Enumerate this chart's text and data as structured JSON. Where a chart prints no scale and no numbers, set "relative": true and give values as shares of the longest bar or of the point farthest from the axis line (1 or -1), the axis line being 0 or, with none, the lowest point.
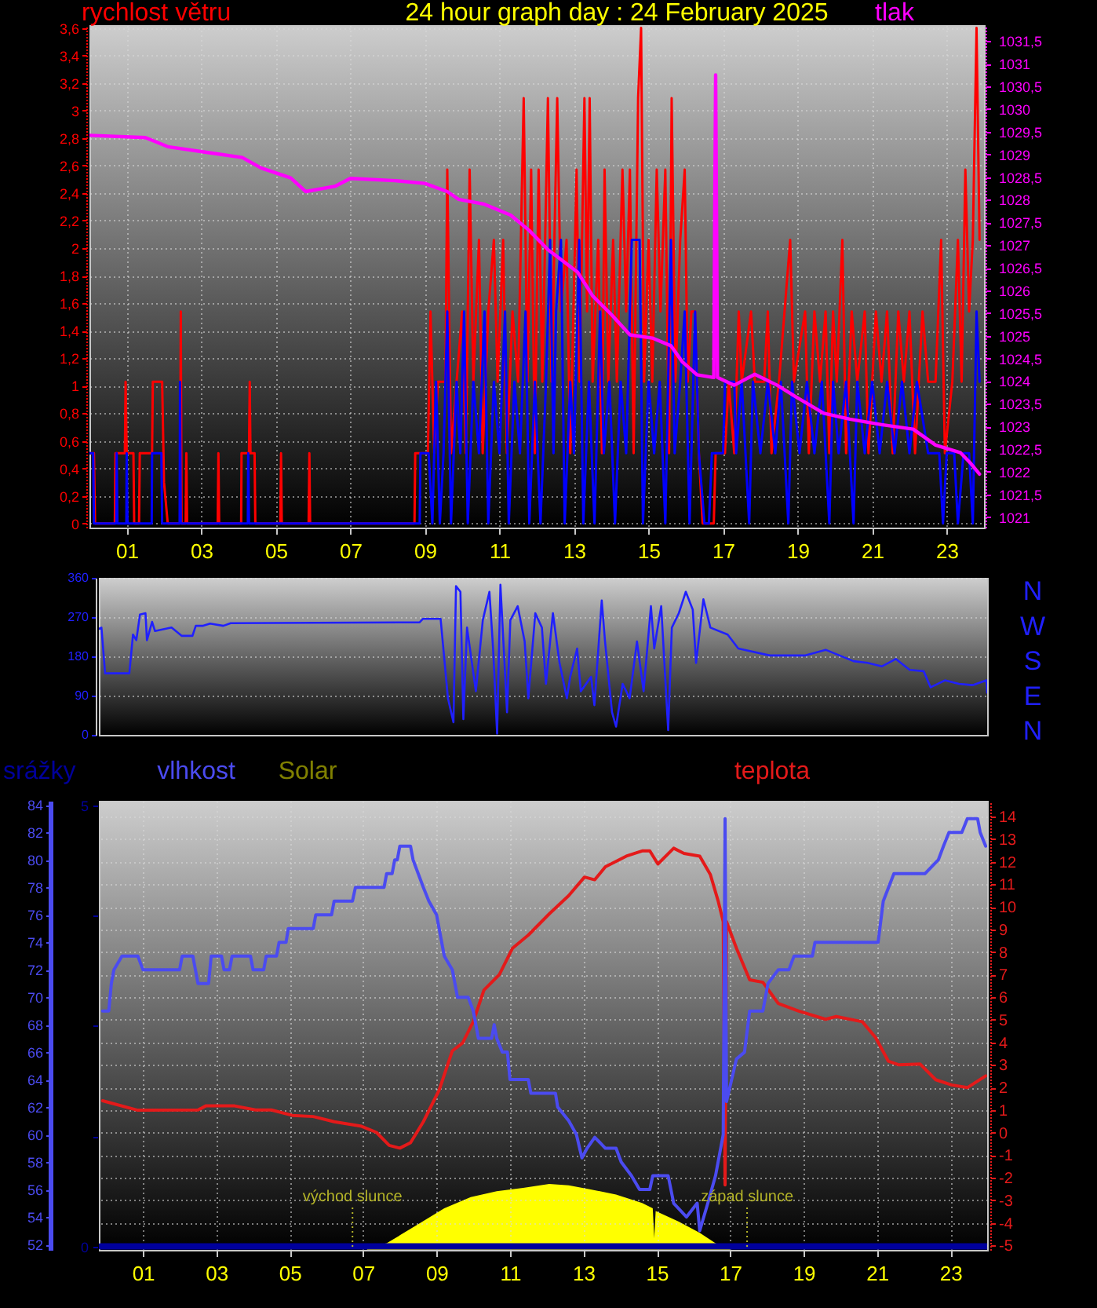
{
  "chart_data": [
    {
      "type": "line",
      "title": "24 hour graph day : 24 February 2025",
      "ylabel": "rychlost větru",
      "y2label": "tlak",
      "xlim": [
        0,
        24
      ],
      "xticks": [
        {
          "value": 1,
          "label": "01"
        },
        {
          "value": 3,
          "label": "03"
        },
        {
          "value": 5,
          "label": "05"
        },
        {
          "value": 7,
          "label": "07"
        },
        {
          "value": 9,
          "label": "09"
        },
        11,
        13,
        15,
        17,
        19,
        21,
        23
      ],
      "ylim": [
        -0.03,
        3.62
      ],
      "yticks": [
        0,
        {
          "value": 0.2,
          "label": "0,2"
        },
        {
          "value": 0.4,
          "label": "0,4"
        },
        {
          "value": 0.6,
          "label": "0,6"
        },
        {
          "value": 0.8,
          "label": "0,8"
        },
        1,
        {
          "value": 1.2,
          "label": "1,2"
        },
        {
          "value": 1.4,
          "label": "1,4"
        },
        {
          "value": 1.6,
          "label": "1,6"
        },
        {
          "value": 1.8,
          "label": "1,8"
        },
        2,
        {
          "value": 2.2,
          "label": "2,2"
        },
        {
          "value": 2.4,
          "label": "2,4"
        },
        {
          "value": 2.6,
          "label": "2,6"
        },
        {
          "value": 2.8,
          "label": "2,8"
        },
        3,
        {
          "value": 3.2,
          "label": "3,2"
        },
        {
          "value": 3.4,
          "label": "3,4"
        },
        {
          "value": 3.6,
          "label": "3,6"
        }
      ],
      "y2lim": [
        1020.77,
        1031.85
      ],
      "y2ticks": [
        1021,
        {
          "value": 1021.5,
          "label": "1021,5"
        },
        1022,
        {
          "value": 1022.5,
          "label": "1022,5"
        },
        1023,
        {
          "value": 1023.5,
          "label": "1023,5"
        },
        1024,
        {
          "value": 1024.5,
          "label": "1024,5"
        },
        1025,
        {
          "value": 1025.5,
          "label": "1025,5"
        },
        1026,
        {
          "value": 1026.5,
          "label": "1026,5"
        },
        1027,
        {
          "value": 1027.5,
          "label": "1027,5"
        },
        1028,
        {
          "value": 1028.5,
          "label": "1028,5"
        },
        1029,
        {
          "value": 1029.5,
          "label": "1029,5"
        },
        1030,
        {
          "value": 1030.5,
          "label": "1030,5"
        },
        1031,
        {
          "value": 1031.5,
          "label": "1031,5"
        }
      ],
      "grid": true,
      "series": [
        {
          "color": "#ff0000",
          "x": [
            0,
            0.12,
            0.15,
            0.68,
            0.7,
            0.95,
            0.97,
            1.0,
            1.18,
            1.2,
            1.33,
            1.35,
            1.68,
            1.7,
            1.95,
            2.0,
            2.1,
            2.43,
            2.45,
            2.47,
            2.58,
            2.6,
            2.62,
            3.44,
            3.46,
            3.48,
            4.07,
            4.08,
            4.28,
            4.3,
            4.32,
            4.43,
            4.45,
            5.12,
            5.14,
            5.16,
            5.88,
            5.9,
            5.92,
            8.72,
            8.74,
            9.08,
            9.15,
            9.25,
            9.35,
            9.55,
            9.6,
            9.7,
            9.85,
            10.0,
            10.1,
            10.2,
            10.3,
            10.45,
            10.55,
            10.7,
            10.85,
            10.95,
            11.1,
            11.2,
            11.35,
            11.5,
            11.65,
            11.75,
            11.85,
            11.95,
            12.05,
            12.15,
            12.3,
            12.4,
            12.55,
            12.65,
            12.8,
            12.9,
            13.07,
            13.15,
            13.28,
            13.35,
            13.42,
            13.5,
            13.65,
            13.75,
            13.82,
            13.92,
            14.05,
            14.15,
            14.3,
            14.4,
            14.5,
            14.6,
            14.72,
            14.8,
            14.88,
            15.0,
            15.1,
            15.22,
            15.32,
            15.45,
            15.55,
            15.62,
            15.72,
            15.85,
            15.97,
            16.05,
            16.15,
            16.25,
            16.35,
            16.45,
            16.75,
            16.8,
            17.05,
            17.15,
            17.3,
            17.42,
            17.5,
            17.75,
            17.85,
            18.1,
            18.2,
            18.3,
            18.5,
            18.8,
            18.9,
            19.2,
            19.3,
            19.45,
            19.6,
            19.75,
            19.85,
            19.95,
            20.05,
            20.2,
            20.3,
            20.45,
            20.6,
            20.8,
            20.9,
            21.1,
            21.25,
            21.4,
            21.55,
            21.7,
            21.85,
            22.0,
            22.15,
            22.35,
            22.5,
            22.7,
            22.85,
            22.95,
            23.15,
            23.3,
            23.4,
            23.5,
            23.6,
            23.7,
            23.8,
            23.88
          ],
          "values": [
            0.51,
            0.51,
            0,
            0,
            0.51,
            0.51,
            1.03,
            0.51,
            0.51,
            0,
            0,
            0.51,
            0.51,
            1.03,
            1.03,
            0.3,
            0,
            0,
            1.54,
            0,
            0,
            0.51,
            0,
            0,
            0.51,
            0,
            0,
            0.51,
            0.51,
            1.03,
            0.51,
            0.51,
            0,
            0,
            0.51,
            0,
            0,
            0.51,
            0,
            0,
            0.51,
            0.51,
            1.54,
            0.51,
            1.03,
            1.03,
            2.57,
            0.51,
            1.03,
            1.54,
            0.51,
            2.57,
            1.03,
            2.06,
            0.51,
            1.54,
            2.06,
            1.03,
            2.06,
            0.51,
            1.54,
            1.03,
            3.09,
            1.03,
            2.57,
            0.51,
            2.57,
            1.03,
            3.09,
            1.03,
            3.09,
            1.54,
            2.06,
            0.51,
            2.57,
            1.03,
            3.09,
            1.54,
            3.09,
            1.03,
            2.06,
            0.51,
            2.57,
            1.03,
            2.06,
            1.03,
            2.57,
            1.54,
            2.57,
            0.51,
            3.09,
            3.6,
            1.03,
            2.06,
            1.03,
            2.57,
            1.54,
            2.57,
            0.51,
            3.09,
            1.03,
            2.06,
            2.57,
            1.03,
            1.54,
            1.54,
            0.51,
            0,
            0,
            0.51,
            0.51,
            1.03,
            0.51,
            1.54,
            1.03,
            1.54,
            1.03,
            1.03,
            1.54,
            0.51,
            1.03,
            2.06,
            1.03,
            1.54,
            0.51,
            1.54,
            1.03,
            1.54,
            0.51,
            1.54,
            1.03,
            2.06,
            0.51,
            1.54,
            1.03,
            1.54,
            0.51,
            1.54,
            1.03,
            1.54,
            0.51,
            1.54,
            1.03,
            1.54,
            0.51,
            1.54,
            1.03,
            1.03,
            2.06,
            0.51,
            1.03,
            2.06,
            1.03,
            2.57,
            1.54,
            2.06,
            3.6,
            2.06
          ]
        },
        {
          "color": "#0000ff",
          "x": [
            0,
            0.1,
            0.12,
            0.72,
            0.73,
            0.75,
            0.99,
            1.0,
            1.02,
            1.67,
            1.68,
            1.93,
            1.95,
            2.42,
            2.43,
            2.45,
            4.25,
            4.26,
            4.28,
            8.86,
            8.88,
            9.1,
            9.2,
            9.3,
            9.4,
            9.5,
            9.6,
            9.7,
            9.85,
            9.95,
            10.05,
            10.15,
            10.3,
            10.45,
            10.6,
            10.7,
            10.85,
            11.0,
            11.15,
            11.25,
            11.4,
            11.55,
            11.7,
            11.8,
            11.95,
            12.1,
            12.25,
            12.36,
            12.45,
            12.52,
            12.65,
            12.75,
            12.9,
            13.0,
            13.14,
            13.25,
            13.4,
            13.55,
            13.7,
            13.8,
            13.95,
            14.1,
            14.25,
            14.4,
            14.55,
            14.76,
            14.85,
            15.0,
            15.15,
            15.3,
            15.45,
            15.6,
            15.7,
            15.85,
            15.97,
            16.1,
            16.25,
            16.35,
            16.5,
            16.62,
            16.7,
            17.0,
            17.05,
            17.3,
            17.35,
            17.5,
            17.7,
            17.8,
            18.0,
            18.2,
            18.4,
            18.55,
            18.75,
            18.85,
            19.05,
            19.25,
            19.45,
            19.65,
            19.85,
            19.95,
            20.1,
            20.3,
            20.5,
            20.6,
            20.8,
            21.0,
            21.2,
            21.4,
            21.6,
            21.8,
            22.0,
            22.2,
            22.5,
            22.8,
            22.9,
            23.0,
            23.2,
            23.3,
            23.45,
            23.6,
            23.7,
            23.8,
            23.88
          ],
          "values": [
            0.51,
            0.51,
            0,
            0,
            0.51,
            0,
            0,
            0.51,
            0,
            0,
            0.51,
            0.51,
            0,
            0,
            1.03,
            0,
            0,
            0.51,
            0,
            0,
            0.51,
            0.51,
            0,
            1.03,
            0,
            0.51,
            1.54,
            0,
            1.03,
            0.51,
            1.54,
            0,
            1.03,
            0.51,
            1.54,
            0,
            1.03,
            0.51,
            1.54,
            0,
            1.03,
            0.51,
            1.54,
            0,
            1.03,
            0,
            1.03,
            2.06,
            0.51,
            1.54,
            2.06,
            0,
            1.03,
            0.51,
            2.06,
            0,
            1.03,
            0,
            1.54,
            0.51,
            1.03,
            0,
            1.03,
            0.51,
            2.06,
            2.06,
            0,
            1.03,
            0.51,
            1.03,
            0,
            2.06,
            0.51,
            1.03,
            1.54,
            0,
            1.54,
            0.51,
            0,
            0,
            0.51,
            0.51,
            1.03,
            1.03,
            0.51,
            1.03,
            0,
            1.03,
            0.51,
            1.03,
            0.51,
            1.03,
            0,
            1.03,
            0.51,
            1.03,
            0.51,
            1.03,
            0,
            1.03,
            0.51,
            1.03,
            0,
            1.03,
            0.51,
            1.03,
            0.51,
            1.03,
            0.51,
            1.03,
            0.51,
            1.03,
            0.51,
            0.51,
            0,
            0.51,
            0.51,
            0,
            0.51,
            0.51,
            0,
            1.54,
            1.03
          ]
        },
        {
          "color": "#ff00ff",
          "axis": "y2",
          "x": [
            0,
            1.5,
            2.1,
            3.1,
            4.1,
            4.6,
            5.4,
            5.8,
            6.6,
            7.0,
            8.2,
            9.0,
            9.6,
            9.9,
            10.6,
            11.3,
            11.8,
            12.3,
            13.1,
            13.5,
            14.0,
            14.5,
            15.1,
            15.6,
            15.9,
            16.3,
            16.75,
            16.8,
            16.85,
            17.3,
            17.85,
            18.45,
            19.0,
            19.7,
            20.4,
            21.25,
            22.1,
            22.7,
            23.37,
            23.65,
            23.88
          ],
          "values": [
            1029.42,
            1029.37,
            1029.17,
            1029.05,
            1028.93,
            1028.7,
            1028.48,
            1028.18,
            1028.3,
            1028.47,
            1028.42,
            1028.36,
            1028.18,
            1028.01,
            1027.9,
            1027.66,
            1027.32,
            1026.9,
            1026.4,
            1025.88,
            1025.47,
            1025.02,
            1024.95,
            1024.78,
            1024.43,
            1024.14,
            1024.08,
            1030.75,
            1024.08,
            1023.91,
            1024.15,
            1023.91,
            1023.63,
            1023.29,
            1023.16,
            1023.04,
            1022.94,
            1022.59,
            1022.42,
            1022.18,
            1021.95
          ]
        }
      ]
    },
    {
      "type": "line",
      "xlim": [
        -0.2,
        24
      ],
      "ylim": [
        0,
        360
      ],
      "yticks": [
        0,
        90,
        180,
        270,
        360
      ],
      "annotations": [
        "N",
        "W",
        "S",
        "E",
        "N"
      ],
      "grid": "y",
      "tick_labels": "y",
      "series": [
        {
          "color": "#2020ff",
          "x": [
            -0.2,
            -0.13,
            -0.03,
            0.63,
            0.73,
            0.82,
            0.92,
            1.07,
            1.11,
            1.25,
            1.33,
            1.78,
            2.06,
            2.35,
            2.44,
            2.64,
            2.83,
            3.19,
            3.39,
            8.54,
            8.63,
            9.11,
            9.31,
            9.46,
            9.53,
            9.65,
            9.73,
            9.83,
            10.07,
            10.26,
            10.44,
            10.54,
            10.65,
            10.74,
            10.92,
            11.01,
            11.21,
            11.4,
            11.5,
            11.69,
            11.87,
            11.98,
            12.17,
            12.35,
            12.55,
            12.64,
            12.83,
            12.93,
            13.21,
            13.3,
            13.5,
            13.59,
            13.78,
            13.89,
            14.07,
            14.26,
            14.46,
            14.64,
            14.84,
            14.93,
            15.12,
            15.31,
            15.41,
            15.6,
            15.79,
            15.98,
            16.07,
            16.27,
            16.46,
            16.93,
            17.22,
            18.08,
            19.03,
            19.6,
            19.98,
            20.36,
            20.74,
            21.13,
            21.51,
            21.89,
            22.27,
            22.46,
            22.85,
            23.23,
            23.6,
            23.98,
            24.0
          ],
          "values": [
            243,
            246,
            141,
            141,
            230,
            217,
            276,
            279,
            217,
            259,
            238,
            246,
            227,
            227,
            250,
            250,
            255,
            250,
            256,
            258,
            266,
            266,
            84,
            29,
            341,
            328,
            36,
            246,
            100,
            263,
            328,
            198,
            3,
            344,
            52,
            263,
            295,
            214,
            84,
            279,
            246,
            117,
            279,
            165,
            84,
            133,
            198,
            100,
            133,
            68,
            308,
            214,
            52,
            19,
            117,
            84,
            214,
            100,
            295,
            198,
            295,
            11,
            246,
            279,
            328,
            287,
            165,
            311,
            246,
            230,
            198,
            182,
            182,
            195,
            182,
            169,
            165,
            157,
            174,
            149,
            146,
            109,
            125,
            117,
            114,
            125,
            97
          ]
        }
      ]
    },
    {
      "type": "line",
      "ylabel": "vlhkost",
      "y2label": "teplota",
      "y3label": "srážky",
      "xlim": [
        -0.2,
        24
      ],
      "xticks": [
        {
          "value": 1,
          "label": "01"
        },
        {
          "value": 3,
          "label": "03"
        },
        {
          "value": 5,
          "label": "05"
        },
        {
          "value": 7,
          "label": "07"
        },
        {
          "value": 9,
          "label": "09"
        },
        11,
        13,
        15,
        17,
        19,
        21,
        23
      ],
      "ylim": [
        51.6,
        84.3
      ],
      "yticks": [
        52,
        54,
        56,
        58,
        60,
        62,
        64,
        66,
        68,
        70,
        72,
        74,
        76,
        78,
        80,
        82,
        84
      ],
      "y2lim": [
        -5.2,
        14.7
      ],
      "y2ticks": [
        -5,
        -4,
        -3,
        -2,
        -1,
        0,
        1,
        2,
        3,
        4,
        5,
        6,
        7,
        8,
        9,
        10,
        11,
        12,
        13,
        14
      ],
      "y3lim": [
        -0.04,
        5.05
      ],
      "y3ticks": [
        0,
        {
          "value": 1.25,
          "label": null
        },
        {
          "value": 2.5,
          "label": null
        },
        {
          "value": 3.75,
          "label": null
        },
        5
      ],
      "grid": true,
      "ref_lines": [
        {
          "axis": "x",
          "value": 6.71,
          "label": "východ slunce",
          "color": "#b4b428",
          "line_style": "dotted"
        },
        {
          "axis": "x",
          "value": 17.46,
          "label": "západ slunce",
          "color": "#b4b428",
          "line_style": "dotted"
        }
      ],
      "series": [
        {
          "color": "#e41a1a",
          "axis": "y2",
          "x": [
            -0.1,
            0.86,
            2.5,
            2.71,
            3.5,
            4.07,
            4.5,
            5.07,
            5.64,
            6.21,
            6.93,
            7.36,
            7.71,
            8.0,
            8.29,
            8.64,
            9.07,
            9.43,
            9.71,
            10.0,
            10.29,
            10.71,
            11.07,
            11.5,
            12.07,
            12.6,
            13.03,
            13.31,
            13.6,
            14.17,
            14.6,
            14.81,
            15.03,
            15.46,
            15.74,
            16.17,
            16.46,
            16.67,
            16.81,
            16.86,
            16.9,
            17.17,
            17.53,
            17.89,
            18.31,
            18.89,
            19.6,
            19.89,
            20.6,
            20.96,
            21.31,
            21.6,
            22.17,
            22.6,
            23.03,
            23.46,
            23.96
          ],
          "values": [
            1.41,
            0.99,
            1.0,
            1.18,
            1.18,
            1.0,
            1.0,
            0.76,
            0.71,
            0.48,
            0.29,
            0.01,
            -0.57,
            -0.69,
            -0.45,
            0.48,
            1.88,
            3.62,
            3.97,
            4.91,
            6.31,
            7.0,
            8.17,
            8.75,
            9.69,
            10.5,
            11.32,
            11.2,
            11.78,
            12.25,
            12.48,
            12.48,
            11.9,
            12.6,
            12.37,
            12.25,
            11.43,
            10.27,
            9.34,
            -2.32,
            9.34,
            8.17,
            6.77,
            6.66,
            5.72,
            5.37,
            5.02,
            5.14,
            4.91,
            4.21,
            3.16,
            3.0,
            3.04,
            2.34,
            2.11,
            1.99,
            2.51
          ]
        },
        {
          "color": "#4b4bf0",
          "x": [
            -0.1,
            0.07,
            0.14,
            0.21,
            0.43,
            0.86,
            1.0,
            2.0,
            2.07,
            2.36,
            2.5,
            2.79,
            2.86,
            3.14,
            3.21,
            3.36,
            3.43,
            3.93,
            4.0,
            4.29,
            4.36,
            4.64,
            4.71,
            4.9,
            4.96,
            5.64,
            5.71,
            6.14,
            6.21,
            6.71,
            6.79,
            7.57,
            7.64,
            7.79,
            7.86,
            7.93,
            8.0,
            8.29,
            8.36,
            8.5,
            8.64,
            8.79,
            9.0,
            9.21,
            9.43,
            9.57,
            9.86,
            10.0,
            10.14,
            10.5,
            10.57,
            10.64,
            10.79,
            10.93,
            11.0,
            11.5,
            11.57,
            12.24,
            12.3,
            12.6,
            12.81,
            12.96,
            13.1,
            13.31,
            13.6,
            13.89,
            14.03,
            14.31,
            14.53,
            14.81,
            14.89,
            15.31,
            15.46,
            15.81,
            16.1,
            16.17,
            16.39,
            16.6,
            16.81,
            16.86,
            16.9,
            17.17,
            17.39,
            17.53,
            17.89,
            18.03,
            18.31,
            18.6,
            18.74,
            19.24,
            19.31,
            21.03,
            21.17,
            21.46,
            22.31,
            22.67,
            22.81,
            22.96,
            23.31,
            23.46,
            23.74,
            23.81,
            23.96
          ],
          "values": [
            69,
            69,
            71,
            72,
            73,
            73,
            72,
            72,
            73,
            73,
            71,
            71,
            73,
            73,
            72,
            72,
            73,
            73,
            72,
            72,
            73,
            73,
            74,
            74,
            75,
            75,
            76,
            76,
            77,
            77,
            78,
            78,
            79,
            79,
            80,
            80,
            81,
            81,
            80,
            79,
            78,
            77,
            76,
            73,
            72,
            70,
            70,
            69,
            67,
            67,
            68,
            67,
            66,
            66,
            64,
            64,
            63,
            63,
            62,
            61,
            60,
            58.3,
            59,
            59.8,
            59,
            59,
            58,
            57,
            56,
            56,
            57,
            57,
            55,
            54,
            55,
            53,
            55,
            57,
            60,
            83,
            62.4,
            65.5,
            66,
            69,
            69,
            71,
            72,
            72,
            73,
            73,
            74,
            74,
            77,
            79,
            79,
            80,
            81,
            82,
            82,
            83,
            83,
            82,
            81
          ]
        },
        {
          "color": "#00009c",
          "axis": "y3",
          "x": [
            -0.15,
            1,
            2,
            3,
            4,
            5,
            6,
            7,
            8,
            9,
            10,
            11,
            12,
            13,
            14,
            15,
            16,
            17,
            18,
            19,
            20,
            21,
            22,
            23,
            24
          ],
          "values": [
            0,
            0,
            0,
            0,
            0,
            0,
            0,
            0,
            0,
            0,
            0,
            0,
            0,
            0,
            0,
            0,
            0,
            0,
            0,
            0,
            0,
            0,
            0,
            0,
            0
          ]
        }
      ]
    },
    {
      "type": "area",
      "relative": true,
      "xlim": [
        -0.2,
        24
      ],
      "tick_labels": false,
      "series": [
        {
          "name": "Solar",
          "color": "#ffff00",
          "x": [
            -0.15,
            7.1,
            7.14,
            7.64,
            8.5,
            9.21,
            9.93,
            10.64,
            11.36,
            12.07,
            12.6,
            13.17,
            13.89,
            14.6,
            14.89,
            14.93,
            14.97,
            15.6,
            16.17,
            16.6,
            16.96,
            17.0,
            24
          ],
          "values": [
            0,
            0,
            0.04,
            0.1,
            0.39,
            0.63,
            0.8,
            0.89,
            0.94,
            1,
            0.98,
            0.92,
            0.84,
            0.71,
            0.63,
            0.18,
            0.59,
            0.43,
            0.26,
            0.1,
            0.04,
            0,
            0
          ]
        }
      ]
    }
  ]
}
